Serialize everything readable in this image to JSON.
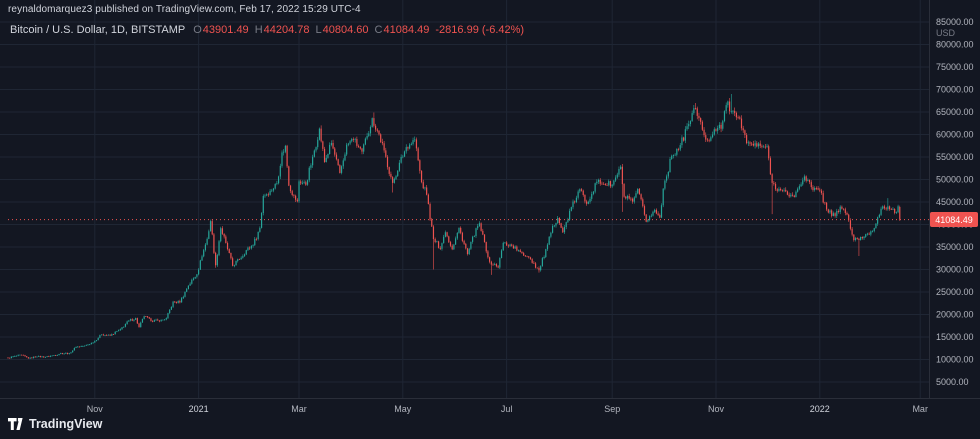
{
  "header": {
    "published_line": "reynaldomarquez3 published on TradingView.com, Feb 17, 2022 15:29 UTC-4"
  },
  "legend": {
    "symbol": "Bitcoin / U.S. Dollar, 1D, BITSTAMP",
    "o_label": "O",
    "o_value": "43901.49",
    "h_label": "H",
    "h_value": "44204.78",
    "l_label": "L",
    "l_value": "40804.60",
    "c_label": "C",
    "c_value": "41084.49",
    "change": "-2816.99 (-6.42%)"
  },
  "price_scale": {
    "unit": "USD",
    "last_price_label": "41084.49",
    "ticks": [
      {
        "value": 85000,
        "label": "85000.00"
      },
      {
        "value": 80000,
        "label": "80000.00"
      },
      {
        "value": 75000,
        "label": "75000.00"
      },
      {
        "value": 70000,
        "label": "70000.00"
      },
      {
        "value": 65000,
        "label": "65000.00"
      },
      {
        "value": 60000,
        "label": "60000.00"
      },
      {
        "value": 55000,
        "label": "55000.00"
      },
      {
        "value": 50000,
        "label": "50000.00"
      },
      {
        "value": 45000,
        "label": "45000.00"
      },
      {
        "value": 40000,
        "label": "40000.00"
      },
      {
        "value": 35000,
        "label": "35000.00"
      },
      {
        "value": 30000,
        "label": "30000.00"
      },
      {
        "value": 25000,
        "label": "25000.00"
      },
      {
        "value": 20000,
        "label": "20000.00"
      },
      {
        "value": 15000,
        "label": "15000.00"
      },
      {
        "value": 10000,
        "label": "10000.00"
      },
      {
        "value": 5000,
        "label": "5000.00"
      }
    ]
  },
  "time_scale": {
    "labels": [
      {
        "text": "Nov",
        "date": "2020-11-01"
      },
      {
        "text": "2021",
        "date": "2021-01-01",
        "year": true
      },
      {
        "text": "Mar",
        "date": "2021-03-01"
      },
      {
        "text": "May",
        "date": "2021-05-01"
      },
      {
        "text": "Jul",
        "date": "2021-07-01"
      },
      {
        "text": "Sep",
        "date": "2021-09-01"
      },
      {
        "text": "Nov",
        "date": "2021-11-01"
      },
      {
        "text": "2022",
        "date": "2022-01-01",
        "year": true
      },
      {
        "text": "Mar",
        "date": "2022-03-01"
      }
    ]
  },
  "footer": {
    "brand": "TradingView"
  },
  "colors": {
    "background": "#131722",
    "up": "#26a69a",
    "down": "#ef5350",
    "text_primary": "#d1d4dc",
    "text_secondary": "#787b86",
    "axis_text": "#b2b5be",
    "grid": "#1f2634",
    "separator": "#2a2e39",
    "badge_text": "#ffffff"
  },
  "chart_data": {
    "type": "candlestick",
    "title": "Bitcoin / U.S. Dollar",
    "exchange": "BITSTAMP",
    "interval": "1D",
    "x_axis": {
      "start": "2020-09-11",
      "end": "2022-03-05"
    },
    "y_axis": {
      "min": 5000,
      "max": 85000,
      "tick_step": 5000
    },
    "price_line": 41084.49,
    "last": {
      "o": 43901.49,
      "h": 44204.78,
      "l": 40804.6,
      "c": 41084.49
    },
    "change": "-2816.99 (-6.42%)",
    "anchors": [
      [
        "2020-09-11",
        10350
      ],
      [
        "2020-09-15",
        10750
      ],
      [
        "2020-09-19",
        11000
      ],
      [
        "2020-09-23",
        10250
      ],
      [
        "2020-09-28",
        10700
      ],
      [
        "2020-10-03",
        10550
      ],
      [
        "2020-10-08",
        10950
      ],
      [
        "2020-10-12",
        11400
      ],
      [
        "2020-10-17",
        11350
      ],
      [
        "2020-10-21",
        12800
      ],
      [
        "2020-10-26",
        13050
      ],
      [
        "2020-10-31",
        13800
      ],
      [
        "2020-11-05",
        15600
      ],
      [
        "2020-11-10",
        15300
      ],
      [
        "2020-11-16",
        16700
      ],
      [
        "2020-11-21",
        18650
      ],
      [
        "2020-11-25",
        19150
      ],
      [
        "2020-11-27",
        17150
      ],
      [
        "2020-11-30",
        19650
      ],
      [
        "2020-12-04",
        18650
      ],
      [
        "2020-12-09",
        18550
      ],
      [
        "2020-12-13",
        19150
      ],
      [
        "2020-12-17",
        22800
      ],
      [
        "2020-12-21",
        22750
      ],
      [
        "2020-12-26",
        26450
      ],
      [
        "2020-12-31",
        29000
      ],
      [
        "2021-01-03",
        33000
      ],
      [
        "2021-01-06",
        36800
      ],
      [
        "2021-01-08",
        40800
      ],
      [
        "2021-01-11",
        30850
      ],
      [
        "2021-01-14",
        39200
      ],
      [
        "2021-01-17",
        35800
      ],
      [
        "2021-01-21",
        30850
      ],
      [
        "2021-01-25",
        32300
      ],
      [
        "2021-01-29",
        34300
      ],
      [
        "2021-02-02",
        35500
      ],
      [
        "2021-02-06",
        39250
      ],
      [
        "2021-02-08",
        46400
      ],
      [
        "2021-02-12",
        47400
      ],
      [
        "2021-02-16",
        49200
      ],
      [
        "2021-02-19",
        55900
      ],
      [
        "2021-02-21",
        57400
      ],
      [
        "2021-02-23",
        48800
      ],
      [
        "2021-02-26",
        46300
      ],
      [
        "2021-02-28",
        45100
      ],
      [
        "2021-03-01",
        49600
      ],
      [
        "2021-03-05",
        48900
      ],
      [
        "2021-03-09",
        54900
      ],
      [
        "2021-03-13",
        61200
      ],
      [
        "2021-03-16",
        53900
      ],
      [
        "2021-03-20",
        58100
      ],
      [
        "2021-03-25",
        51300
      ],
      [
        "2021-03-29",
        57600
      ],
      [
        "2021-04-02",
        59000
      ],
      [
        "2021-04-07",
        56000
      ],
      [
        "2021-04-10",
        59800
      ],
      [
        "2021-04-13",
        63500
      ],
      [
        "2021-04-17",
        60000
      ],
      [
        "2021-04-20",
        56300
      ],
      [
        "2021-04-25",
        49100
      ],
      [
        "2021-04-29",
        53600
      ],
      [
        "2021-05-03",
        57200
      ],
      [
        "2021-05-08",
        58900
      ],
      [
        "2021-05-12",
        49400
      ],
      [
        "2021-05-15",
        46700
      ],
      [
        "2021-05-19",
        36700
      ],
      [
        "2021-05-23",
        34700
      ],
      [
        "2021-05-26",
        38400
      ],
      [
        "2021-05-30",
        34600
      ],
      [
        "2021-06-03",
        39200
      ],
      [
        "2021-06-08",
        33400
      ],
      [
        "2021-06-13",
        39000
      ],
      [
        "2021-06-15",
        40150
      ],
      [
        "2021-06-21",
        31600
      ],
      [
        "2021-06-26",
        30500
      ],
      [
        "2021-06-29",
        35900
      ],
      [
        "2021-07-04",
        35300
      ],
      [
        "2021-07-09",
        33800
      ],
      [
        "2021-07-14",
        32800
      ],
      [
        "2021-07-20",
        29800
      ],
      [
        "2021-07-25",
        35400
      ],
      [
        "2021-07-28",
        39500
      ],
      [
        "2021-07-31",
        41600
      ],
      [
        "2021-08-03",
        38200
      ],
      [
        "2021-08-08",
        43800
      ],
      [
        "2021-08-13",
        47800
      ],
      [
        "2021-08-17",
        44700
      ],
      [
        "2021-08-23",
        49500
      ],
      [
        "2021-08-27",
        49100
      ],
      [
        "2021-09-01",
        48800
      ],
      [
        "2021-09-06",
        52700
      ],
      [
        "2021-09-08",
        46100
      ],
      [
        "2021-09-13",
        44950
      ],
      [
        "2021-09-16",
        47750
      ],
      [
        "2021-09-21",
        40700
      ],
      [
        "2021-09-26",
        43200
      ],
      [
        "2021-09-29",
        41500
      ],
      [
        "2021-10-01",
        48150
      ],
      [
        "2021-10-06",
        55350
      ],
      [
        "2021-10-11",
        57500
      ],
      [
        "2021-10-15",
        61700
      ],
      [
        "2021-10-20",
        66000
      ],
      [
        "2021-10-24",
        60900
      ],
      [
        "2021-10-27",
        58500
      ],
      [
        "2021-10-31",
        61300
      ],
      [
        "2021-11-04",
        61400
      ],
      [
        "2021-11-08",
        67550
      ],
      [
        "2021-11-10",
        64950
      ],
      [
        "2021-11-15",
        63600
      ],
      [
        "2021-11-19",
        58100
      ],
      [
        "2021-11-23",
        57600
      ],
      [
        "2021-11-28",
        57300
      ],
      [
        "2021-12-01",
        57200
      ],
      [
        "2021-12-04",
        49200
      ],
      [
        "2021-12-09",
        47600
      ],
      [
        "2021-12-13",
        46700
      ],
      [
        "2021-12-17",
        46200
      ],
      [
        "2021-12-23",
        50800
      ],
      [
        "2021-12-28",
        47600
      ],
      [
        "2022-01-01",
        47700
      ],
      [
        "2022-01-05",
        43400
      ],
      [
        "2022-01-10",
        41800
      ],
      [
        "2022-01-13",
        43950
      ],
      [
        "2022-01-17",
        42200
      ],
      [
        "2022-01-21",
        36450
      ],
      [
        "2022-01-24",
        36650
      ],
      [
        "2022-01-28",
        37800
      ],
      [
        "2022-02-01",
        38700
      ],
      [
        "2022-02-04",
        41500
      ],
      [
        "2022-02-07",
        43850
      ],
      [
        "2022-02-10",
        44000
      ],
      [
        "2022-02-14",
        42550
      ],
      [
        "2022-02-16",
        43900
      ],
      [
        "2022-02-17",
        41084.49
      ]
    ],
    "spikes": [
      {
        "date": "2021-01-11",
        "low": 30400
      },
      {
        "date": "2021-04-14",
        "high": 64900
      },
      {
        "date": "2021-04-25",
        "low": 47100
      },
      {
        "date": "2021-05-19",
        "low": 30000
      },
      {
        "date": "2021-06-22",
        "low": 28800
      },
      {
        "date": "2021-07-20",
        "low": 29300
      },
      {
        "date": "2021-09-07",
        "low": 42800
      },
      {
        "date": "2021-10-20",
        "high": 67000
      },
      {
        "date": "2021-11-10",
        "high": 69000
      },
      {
        "date": "2021-12-04",
        "low": 42300
      },
      {
        "date": "2022-01-24",
        "low": 33000
      },
      {
        "date": "2022-02-10",
        "high": 45850
      }
    ]
  }
}
